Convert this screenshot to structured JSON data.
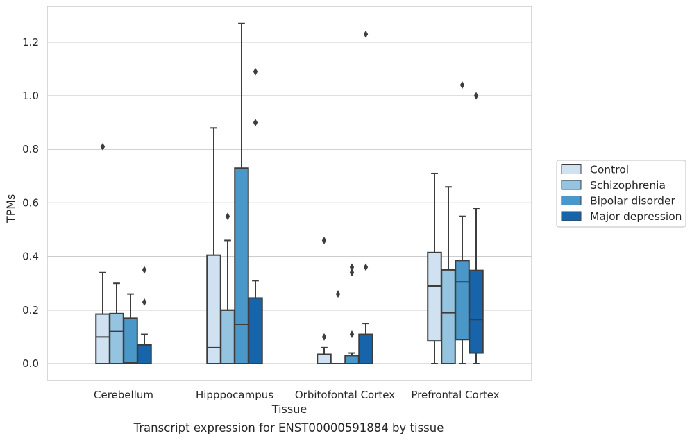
{
  "chart_data": {
    "type": "box",
    "caption": "Transcript expression for ENST00000591884 by tissue",
    "xlabel": "Tissue",
    "ylabel": "TPMs",
    "ylim": [
      -0.06,
      1.34
    ],
    "yticks": [
      0.0,
      0.2,
      0.4,
      0.6,
      0.8,
      1.0,
      1.2
    ],
    "ytick_labels": [
      "0.0",
      "0.2",
      "0.4",
      "0.6",
      "0.8",
      "1.0",
      "1.2"
    ],
    "grid": "horizontal",
    "legend_position": "right",
    "categories": [
      "Cerebellum",
      "Hipppocampus",
      "Orbitofontal Cortex",
      "Prefrontal Cortex"
    ],
    "series": [
      {
        "name": "Control",
        "color": "#d0e1f2",
        "boxes": [
          {
            "q1": 0.0,
            "median": 0.1,
            "q3": 0.185,
            "whisker_low": 0.0,
            "whisker_high": 0.34,
            "outliers": [
              0.81
            ]
          },
          {
            "q1": 0.0,
            "median": 0.06,
            "q3": 0.405,
            "whisker_low": 0.0,
            "whisker_high": 0.88,
            "outliers": []
          },
          {
            "q1": 0.0,
            "median": 0.0,
            "q3": 0.035,
            "whisker_low": 0.0,
            "whisker_high": 0.06,
            "outliers": [
              0.1,
              0.46
            ]
          },
          {
            "q1": 0.085,
            "median": 0.29,
            "q3": 0.415,
            "whisker_low": 0.0,
            "whisker_high": 0.71,
            "outliers": []
          }
        ]
      },
      {
        "name": "Schizophrenia",
        "color": "#94c4df",
        "boxes": [
          {
            "q1": 0.0,
            "median": 0.12,
            "q3": 0.187,
            "whisker_low": 0.0,
            "whisker_high": 0.3,
            "outliers": []
          },
          {
            "q1": 0.0,
            "median": 0.2,
            "q3": 0.2,
            "whisker_low": 0.0,
            "whisker_high": 0.46,
            "outliers": [
              0.55
            ]
          },
          {
            "q1": 0.0,
            "median": 0.0,
            "q3": 0.0,
            "whisker_low": 0.0,
            "whisker_high": 0.0,
            "outliers": [
              0.26
            ]
          },
          {
            "q1": 0.0,
            "median": 0.19,
            "q3": 0.35,
            "whisker_low": 0.0,
            "whisker_high": 0.66,
            "outliers": []
          }
        ]
      },
      {
        "name": "Bipolar disorder",
        "color": "#4a98c9",
        "boxes": [
          {
            "q1": 0.0,
            "median": 0.005,
            "q3": 0.17,
            "whisker_low": 0.0,
            "whisker_high": 0.26,
            "outliers": []
          },
          {
            "q1": 0.0,
            "median": 0.145,
            "q3": 0.73,
            "whisker_low": 0.0,
            "whisker_high": 1.27,
            "outliers": []
          },
          {
            "q1": 0.0,
            "median": 0.0,
            "q3": 0.03,
            "whisker_low": 0.0,
            "whisker_high": 0.04,
            "outliers": [
              0.11,
              0.34,
              0.36
            ]
          },
          {
            "q1": 0.09,
            "median": 0.305,
            "q3": 0.385,
            "whisker_low": 0.0,
            "whisker_high": 0.55,
            "outliers": [
              1.04
            ]
          }
        ]
      },
      {
        "name": "Major depression",
        "color": "#1764ab",
        "boxes": [
          {
            "q1": 0.0,
            "median": 0.0,
            "q3": 0.07,
            "whisker_low": 0.0,
            "whisker_high": 0.11,
            "outliers": [
              0.23,
              0.35
            ]
          },
          {
            "q1": 0.0,
            "median": 0.0,
            "q3": 0.245,
            "whisker_low": 0.0,
            "whisker_high": 0.31,
            "outliers": [
              0.9,
              1.09
            ]
          },
          {
            "q1": 0.0,
            "median": 0.0,
            "q3": 0.11,
            "whisker_low": 0.0,
            "whisker_high": 0.15,
            "outliers": [
              0.36,
              1.23
            ]
          },
          {
            "q1": 0.04,
            "median": 0.165,
            "q3": 0.348,
            "whisker_low": 0.0,
            "whisker_high": 0.58,
            "outliers": [
              1.0
            ]
          }
        ]
      }
    ]
  }
}
